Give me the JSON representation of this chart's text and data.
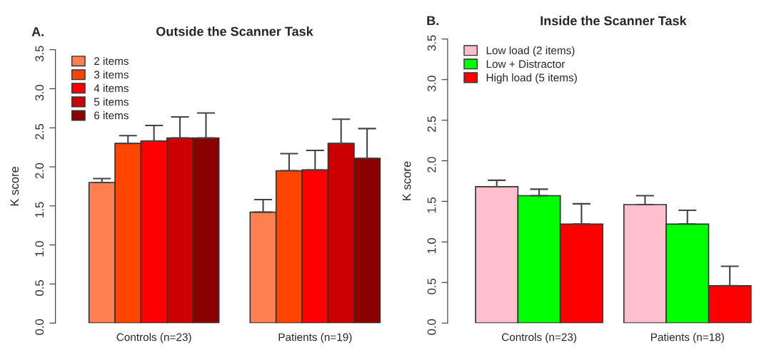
{
  "chart_data": [
    {
      "type": "bar",
      "title": "Outside the Scanner Task",
      "ylabel": "K score",
      "annotations": [
        "A."
      ],
      "categories": [
        "Controls (n=23)",
        "Patients (n=19)"
      ],
      "ylim": [
        0,
        3.5
      ],
      "yticks": [
        {
          "value": 0,
          "label": "0.0"
        },
        0.5,
        {
          "value": 1,
          "label": "1.0"
        },
        1.5,
        {
          "value": 2,
          "label": "2.0"
        },
        2.5,
        {
          "value": 3,
          "label": "3.0"
        },
        3.5
      ],
      "legend": "top left",
      "grid": false,
      "series": [
        {
          "name": "2 items",
          "color": "#ff7f50",
          "values": [
            1.8,
            1.42
          ],
          "errors": [
            [
              1.8,
              1.85
            ],
            [
              1.42,
              1.58
            ]
          ]
        },
        {
          "name": "3 items",
          "color": "#ff4500",
          "values": [
            2.3,
            1.95
          ],
          "errors": [
            [
              2.3,
              2.4
            ],
            [
              1.95,
              2.17
            ]
          ]
        },
        {
          "name": "4 items",
          "color": "#ff0000",
          "values": [
            2.33,
            1.96
          ],
          "errors": [
            [
              2.33,
              2.53
            ],
            [
              1.96,
              2.21
            ]
          ]
        },
        {
          "name": "5 items",
          "color": "#cd0000",
          "values": [
            2.37,
            2.3
          ],
          "errors": [
            [
              2.37,
              2.64
            ],
            [
              2.3,
              2.61
            ]
          ]
        },
        {
          "name": "6 items",
          "color": "#8b0000",
          "values": [
            2.37,
            2.11
          ],
          "errors": [
            [
              2.37,
              2.69
            ],
            [
              2.11,
              2.49
            ]
          ]
        }
      ]
    },
    {
      "type": "bar",
      "title": "Inside the Scanner Task",
      "ylabel": "K score",
      "annotations": [
        "B."
      ],
      "categories": [
        "Controls (n=23)",
        "Patients (n=18)"
      ],
      "ylim": [
        0,
        3.5
      ],
      "yticks": [
        {
          "value": 0,
          "label": "0.0"
        },
        0.5,
        {
          "value": 1,
          "label": "1.0"
        },
        1.5,
        {
          "value": 2,
          "label": "2.0"
        },
        2.5,
        {
          "value": 3,
          "label": "3.0"
        },
        3.5
      ],
      "legend": "top left",
      "grid": false,
      "series": [
        {
          "name": "Low load (2 items)",
          "color": "#ffc0cb",
          "values": [
            1.68,
            1.46
          ],
          "errors": [
            [
              1.68,
              1.76
            ],
            [
              1.46,
              1.57
            ]
          ]
        },
        {
          "name": "Low + Distractor",
          "color": "#00ff00",
          "values": [
            1.57,
            1.22
          ],
          "errors": [
            [
              1.57,
              1.65
            ],
            [
              1.22,
              1.39
            ]
          ]
        },
        {
          "name": "High load (5 items)",
          "color": "#ff0000",
          "values": [
            1.22,
            0.46
          ],
          "errors": [
            [
              1.22,
              1.47
            ],
            [
              0.46,
              0.7
            ]
          ]
        }
      ]
    }
  ]
}
